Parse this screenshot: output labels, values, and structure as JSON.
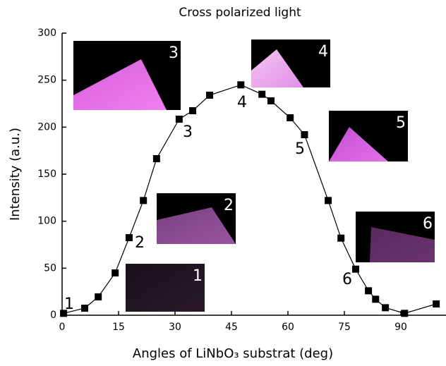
{
  "chart_data": {
    "type": "line",
    "title": "Cross polarized light",
    "x_label": "Angles of LiNbO₃ substrat (deg)",
    "y_label": "Intensity (a.u.)",
    "x": [
      0.4,
      6,
      9.6,
      14.1,
      17.8,
      21.6,
      25.1,
      31.1,
      34.7,
      39.2,
      47.5,
      53.1,
      55.5,
      60.6,
      64.4,
      70.7,
      74.1,
      78,
      81.4,
      83.3,
      85.9,
      91,
      99.4
    ],
    "series": [
      {
        "name": "Intensity",
        "color": "#000000",
        "values": [
          2,
          7.5,
          19.5,
          45,
          82.5,
          122,
          166.5,
          208.5,
          217.5,
          234,
          245,
          235,
          228,
          210,
          192,
          122,
          82,
          49,
          26,
          17,
          8,
          2,
          12
        ]
      }
    ],
    "xlim": [
      0,
      102
    ],
    "ylim": [
      0,
      300
    ],
    "xticks": [
      0,
      15,
      30,
      45,
      60,
      75,
      90
    ],
    "yticks": [
      0,
      50,
      100,
      150,
      200,
      250,
      300
    ],
    "point_labels": [
      "1",
      "2",
      "3",
      "4",
      "5",
      "6"
    ],
    "image_labels": [
      "1",
      "2",
      "3",
      "4",
      "5",
      "6"
    ]
  }
}
